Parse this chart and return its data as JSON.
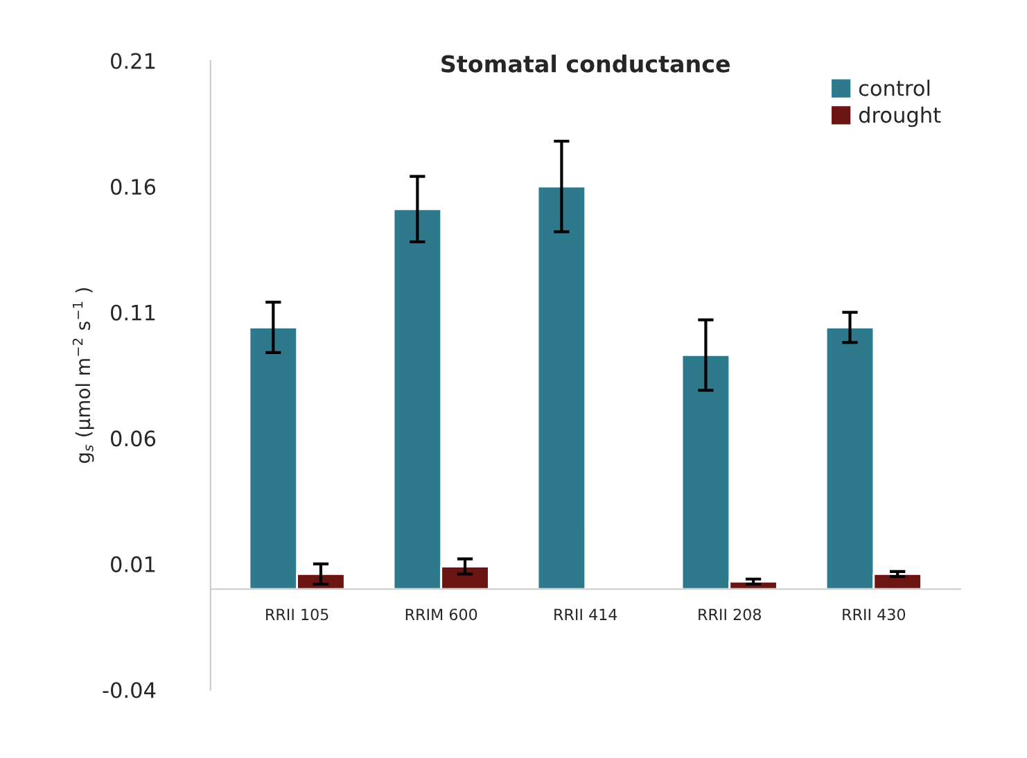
{
  "chart_data": {
    "type": "bar",
    "title": "Stomatal conductance",
    "ylabel": "g$_{s}$ (µmol m$^{−2}$ s$^{−1}$ )",
    "categories": [
      "RRII 105",
      "RRIM 600",
      "RRII 414",
      "RRII 208",
      "RRII 430"
    ],
    "series": [
      {
        "name": "control",
        "color": "#2e7a8c",
        "values": [
          0.104,
          0.151,
          0.16,
          0.093,
          0.104
        ],
        "errors": [
          0.01,
          0.013,
          0.018,
          0.014,
          0.006
        ]
      },
      {
        "name": "drought",
        "color": "#6b1414",
        "values": [
          0.006,
          0.009,
          null,
          0.003,
          0.006
        ],
        "errors": [
          0.004,
          0.003,
          null,
          0.001,
          0.001
        ]
      }
    ],
    "ylim": [
      -0.04,
      0.21
    ],
    "yticks": [
      {
        "value": -0.04,
        "label": "-0.04"
      },
      0.01,
      0.06,
      0.11,
      0.16,
      0.21
    ],
    "grid": false,
    "legend": "top right"
  }
}
